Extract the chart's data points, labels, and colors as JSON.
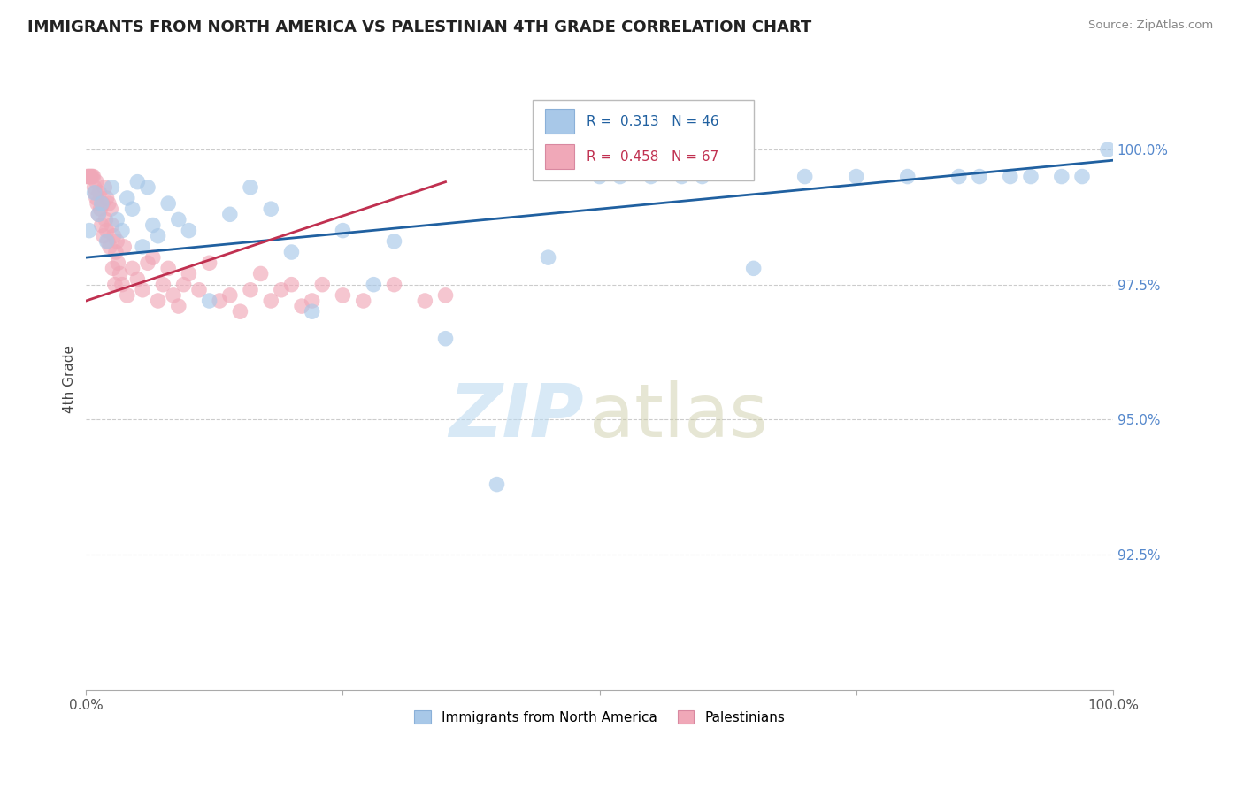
{
  "title": "IMMIGRANTS FROM NORTH AMERICA VS PALESTINIAN 4TH GRADE CORRELATION CHART",
  "source": "Source: ZipAtlas.com",
  "ylabel": "4th Grade",
  "xlim": [
    0,
    100
  ],
  "ylim": [
    90.0,
    101.5
  ],
  "yticks": [
    92.5,
    95.0,
    97.5,
    100.0
  ],
  "ytick_labels": [
    "92.5%",
    "95.0%",
    "97.5%",
    "100.0%"
  ],
  "xticks": [
    0,
    25,
    50,
    75,
    100
  ],
  "xtick_labels": [
    "0.0%",
    "",
    "",
    "",
    "100.0%"
  ],
  "legend_blue_label": "Immigrants from North America",
  "legend_pink_label": "Palestinians",
  "r_blue": 0.313,
  "n_blue": 46,
  "r_pink": 0.458,
  "n_pink": 67,
  "blue_color": "#a8c8e8",
  "pink_color": "#f0a8b8",
  "blue_line_color": "#2060a0",
  "pink_line_color": "#c03050",
  "blue_points_x": [
    0.3,
    0.8,
    1.2,
    1.5,
    2.0,
    2.5,
    3.0,
    3.5,
    4.0,
    4.5,
    5.0,
    5.5,
    6.0,
    6.5,
    7.0,
    8.0,
    9.0,
    10.0,
    12.0,
    14.0,
    16.0,
    18.0,
    20.0,
    22.0,
    25.0,
    28.0,
    30.0,
    35.0,
    40.0,
    45.0,
    50.0,
    52.0,
    55.0,
    58.0,
    60.0,
    65.0,
    70.0,
    75.0,
    80.0,
    85.0,
    87.0,
    90.0,
    92.0,
    95.0,
    97.0,
    99.5
  ],
  "blue_points_y": [
    98.5,
    99.2,
    98.8,
    99.0,
    98.3,
    99.3,
    98.7,
    98.5,
    99.1,
    98.9,
    99.4,
    98.2,
    99.3,
    98.6,
    98.4,
    99.0,
    98.7,
    98.5,
    97.2,
    98.8,
    99.3,
    98.9,
    98.1,
    97.0,
    98.5,
    97.5,
    98.3,
    96.5,
    93.8,
    98.0,
    99.5,
    99.5,
    99.5,
    99.5,
    99.5,
    97.8,
    99.5,
    99.5,
    99.5,
    99.5,
    99.5,
    99.5,
    99.5,
    99.5,
    99.5,
    100.0
  ],
  "pink_points_x": [
    0.1,
    0.2,
    0.3,
    0.4,
    0.5,
    0.6,
    0.7,
    0.8,
    0.9,
    1.0,
    1.0,
    1.1,
    1.2,
    1.3,
    1.4,
    1.5,
    1.6,
    1.7,
    1.8,
    1.9,
    2.0,
    2.0,
    2.1,
    2.2,
    2.3,
    2.4,
    2.5,
    2.6,
    2.7,
    2.8,
    2.9,
    3.0,
    3.1,
    3.3,
    3.5,
    3.7,
    4.0,
    4.5,
    5.0,
    5.5,
    6.0,
    6.5,
    7.0,
    7.5,
    8.0,
    8.5,
    9.0,
    9.5,
    10.0,
    11.0,
    12.0,
    13.0,
    14.0,
    15.0,
    16.0,
    17.0,
    18.0,
    19.0,
    20.0,
    21.0,
    22.0,
    23.0,
    25.0,
    27.0,
    30.0,
    33.0,
    35.0
  ],
  "pink_points_y": [
    99.5,
    99.5,
    99.5,
    99.5,
    99.5,
    99.5,
    99.5,
    99.3,
    99.2,
    99.4,
    99.1,
    99.0,
    98.8,
    99.2,
    98.9,
    98.6,
    99.0,
    98.4,
    99.3,
    98.7,
    98.5,
    99.1,
    98.3,
    99.0,
    98.2,
    98.9,
    98.6,
    97.8,
    98.4,
    97.5,
    98.1,
    98.3,
    97.9,
    97.7,
    97.5,
    98.2,
    97.3,
    97.8,
    97.6,
    97.4,
    97.9,
    98.0,
    97.2,
    97.5,
    97.8,
    97.3,
    97.1,
    97.5,
    97.7,
    97.4,
    97.9,
    97.2,
    97.3,
    97.0,
    97.4,
    97.7,
    97.2,
    97.4,
    97.5,
    97.1,
    97.2,
    97.5,
    97.3,
    97.2,
    97.5,
    97.2,
    97.3
  ],
  "blue_line_x0": 0,
  "blue_line_x1": 100,
  "blue_line_y0": 98.0,
  "blue_line_y1": 99.8,
  "pink_line_x0": 0,
  "pink_line_x1": 35,
  "pink_line_y0": 97.2,
  "pink_line_y1": 99.4
}
